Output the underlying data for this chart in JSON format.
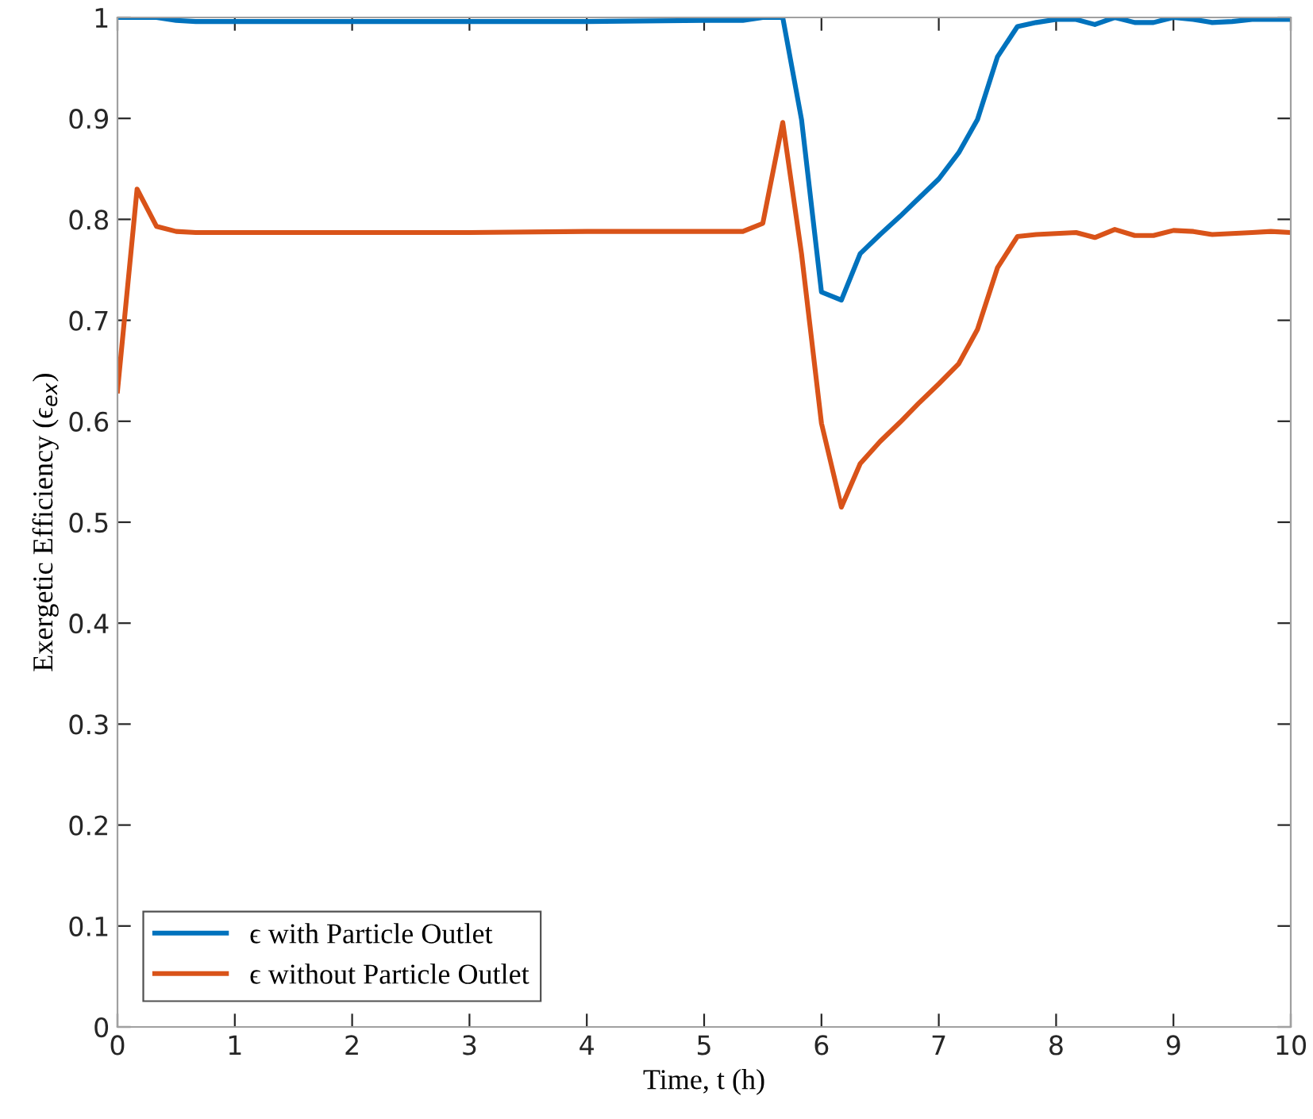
{
  "chart_data": {
    "type": "line",
    "xlabel": "Time, t (h)",
    "ylabel": "Exergetic Efficiency (ϵ$_{ex}$)",
    "xlim": [
      0,
      10
    ],
    "ylim": [
      0,
      1
    ],
    "xticks": [
      0,
      1,
      2,
      3,
      4,
      5,
      6,
      7,
      8,
      9,
      10
    ],
    "yticks": [
      0,
      0.1,
      0.2,
      0.3,
      0.4,
      0.5,
      0.6,
      0.7,
      0.8,
      0.9,
      1
    ],
    "grid": false,
    "legend": "bottom left",
    "line_style": "solid",
    "marker": "none",
    "x": [
      0,
      0.167,
      0.333,
      0.5,
      0.667,
      1,
      2,
      3,
      4,
      5,
      5.33,
      5.5,
      5.67,
      5.83,
      6.0,
      6.17,
      6.33,
      6.5,
      6.67,
      6.83,
      7.0,
      7.17,
      7.33,
      7.5,
      7.67,
      7.83,
      8.0,
      8.17,
      8.33,
      8.5,
      8.67,
      8.83,
      9.0,
      9.17,
      9.33,
      9.5,
      9.67,
      9.83,
      10
    ],
    "series": [
      {
        "name": "ϵ with Particle Outlet",
        "color": "#0072bd",
        "values": [
          1.0,
          1.0,
          1.0,
          0.997,
          0.996,
          0.996,
          0.996,
          0.996,
          0.996,
          0.997,
          0.997,
          1.0,
          1.0,
          0.899,
          0.728,
          0.72,
          0.766,
          0.785,
          0.803,
          0.821,
          0.84,
          0.866,
          0.899,
          0.961,
          0.991,
          0.995,
          0.998,
          0.998,
          0.993,
          1.0,
          0.995,
          0.995,
          1.0,
          0.998,
          0.995,
          0.996,
          0.998,
          0.998,
          0.998
        ]
      },
      {
        "name": "ϵ without Particle Outlet",
        "color": "#d95319",
        "values": [
          0.63,
          0.83,
          0.793,
          0.788,
          0.787,
          0.787,
          0.787,
          0.787,
          0.788,
          0.788,
          0.788,
          0.796,
          0.896,
          0.766,
          0.598,
          0.515,
          0.558,
          0.58,
          0.599,
          0.618,
          0.637,
          0.657,
          0.691,
          0.752,
          0.783,
          0.785,
          0.786,
          0.787,
          0.782,
          0.79,
          0.784,
          0.784,
          0.789,
          0.788,
          0.785,
          0.786,
          0.787,
          0.788,
          0.787
        ]
      }
    ]
  }
}
